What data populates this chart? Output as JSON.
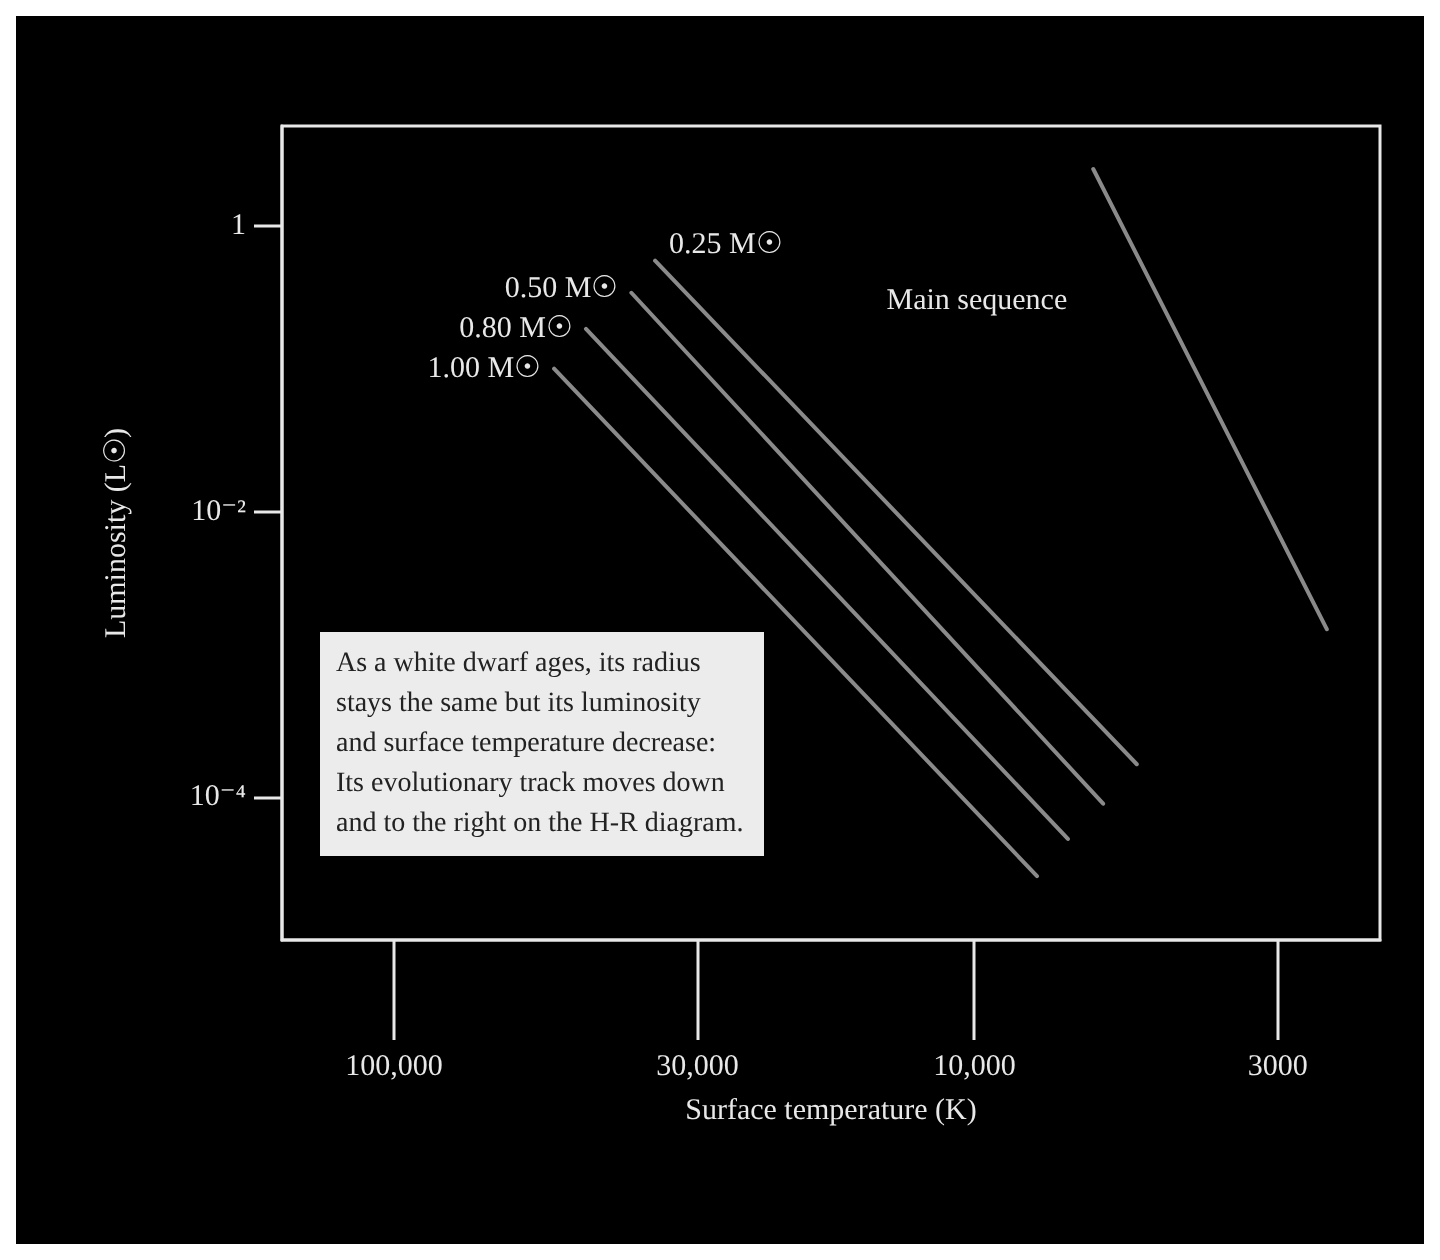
{
  "chart_data": {
    "type": "line",
    "xlabel": "Surface temperature (K)",
    "ylabel": "Luminosity (L☉)",
    "log": "xy",
    "xlim": [
      156000,
      2000
    ],
    "ylim": [
      1e-05,
      5
    ],
    "xticks": [
      {
        "value": 100000,
        "label": "100,000"
      },
      {
        "value": 30000,
        "label": "30,000"
      },
      {
        "value": 10000,
        "label": "10,000"
      },
      3000
    ],
    "yticks": [
      1,
      {
        "value": 0.01,
        "label": "10⁻²"
      },
      {
        "value": 0.0001,
        "label": "10⁻⁴"
      }
    ],
    "series": [
      {
        "name": "1.00 M☉",
        "color": "#8a8a8a",
        "x": [
          53000,
          7800
        ],
        "values": [
          0.1,
          2.8e-05
        ]
      },
      {
        "name": "0.80 M☉",
        "color": "#8a8a8a",
        "x": [
          46700,
          6900
        ],
        "values": [
          0.19,
          5.1e-05
        ]
      },
      {
        "name": "0.50 M☉",
        "color": "#8a8a8a",
        "x": [
          39000,
          6000
        ],
        "values": [
          0.34,
          9e-05
        ]
      },
      {
        "name": "0.25 M☉",
        "color": "#8a8a8a",
        "x": [
          35500,
          5250
        ],
        "values": [
          0.57,
          0.00017
        ]
      },
      {
        "name": "Main sequence",
        "color": "#8a8a8a",
        "x": [
          6240,
          2470
        ],
        "values": [
          2.5,
          0.0015
        ]
      }
    ],
    "line_style": "solid",
    "annotations": [
      "As a white dwarf ages, its radius stays the same but its luminosity and surface temperature decrease: Its evolutionary track moves down and to the right on the H-R diagram."
    ]
  }
}
